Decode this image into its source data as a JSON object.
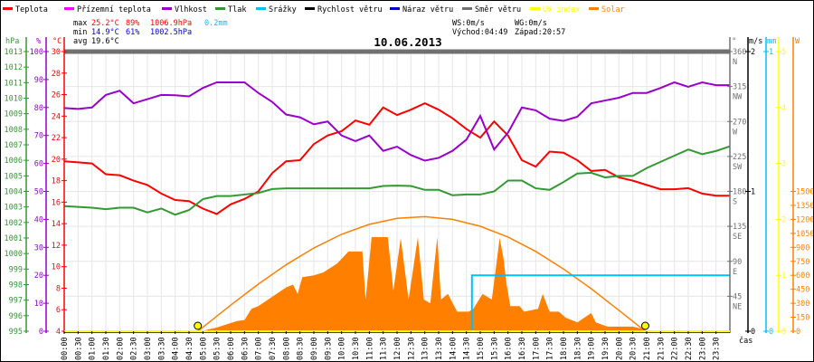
{
  "legend": [
    {
      "label": "Teplota",
      "color": "#ff0000"
    },
    {
      "label": "Přízemní teplota",
      "color": "#ff00ff"
    },
    {
      "label": "Vlhkost",
      "color": "#9900cc"
    },
    {
      "label": "Tlak",
      "color": "#339933"
    },
    {
      "label": "Srážky",
      "color": "#00bfff"
    },
    {
      "label": "Rychlost větru",
      "color": "#000000"
    },
    {
      "label": "Náraz větru",
      "color": "#0000cc"
    },
    {
      "label": "Směr větru",
      "color": "#707070"
    },
    {
      "label": "UV index",
      "color": "#ffff00"
    },
    {
      "label": "Solar",
      "color": "#ff8000"
    }
  ],
  "stats": {
    "max_label": "max",
    "min_label": "min",
    "avg_label": "avg",
    "max": {
      "temp": "25.2°C",
      "hum": "89%",
      "press": "1006.9hPa",
      "rain": "0.2mm"
    },
    "min": {
      "temp": "14.9°C",
      "hum": "61%",
      "press": "1002.5hPa"
    },
    "avg": {
      "temp": "19.6°C"
    },
    "ws": "WS:0m/s",
    "wg": "WG:0m/s",
    "sunrise": "Východ:04:49",
    "sunset": "Západ:20:57"
  },
  "colors": {
    "max": "#ff0000",
    "min": "#0000cc",
    "rain": "#00bfff",
    "grid": "#e6e6e6"
  },
  "chart_data": {
    "type": "line",
    "title": "10.06.2013",
    "xlabel": "čas",
    "x_ticks": [
      "00:00",
      "00:30",
      "01:00",
      "01:30",
      "02:00",
      "02:30",
      "03:00",
      "03:30",
      "04:00",
      "04:30",
      "05:00",
      "05:30",
      "06:00",
      "06:30",
      "07:00",
      "07:30",
      "08:00",
      "08:30",
      "09:00",
      "09:30",
      "10:00",
      "10:30",
      "11:00",
      "11:30",
      "12:00",
      "12:30",
      "13:00",
      "13:30",
      "14:00",
      "14:30",
      "15:00",
      "15:30",
      "16:00",
      "16:30",
      "17:00",
      "17:30",
      "18:00",
      "18:30",
      "19:00",
      "19:30",
      "20:00",
      "20:30",
      "21:00",
      "21:30",
      "22:00",
      "22:30",
      "23:00",
      "23:30"
    ],
    "grid": true,
    "axes": {
      "pressure": {
        "unit": "hPa",
        "range": [
          995,
          1013
        ],
        "ticks": [
          1013,
          1012,
          1011,
          1010,
          1009,
          1008,
          1007,
          1006,
          1005,
          1004,
          1003,
          1002,
          1001,
          1000,
          999,
          998,
          997,
          996,
          995
        ],
        "color": "#339933"
      },
      "humidity": {
        "unit": "%",
        "range": [
          0,
          100
        ],
        "ticks": [
          100,
          90,
          80,
          70,
          60,
          50,
          40,
          30,
          20,
          10,
          0
        ],
        "color": "#9900cc"
      },
      "temperature": {
        "unit": "°C",
        "range": [
          4,
          30
        ],
        "ticks": [
          30,
          28,
          26,
          24,
          22,
          20,
          18,
          16,
          14,
          12,
          10,
          8,
          6,
          4
        ],
        "color": "#ff0000"
      },
      "direction": {
        "unit": "°",
        "range": [
          0,
          360
        ],
        "ticks": [
          360,
          315,
          270,
          225,
          180,
          135,
          90,
          45
        ],
        "labels": [
          "N",
          "NW",
          "W",
          "SW",
          "S",
          "SE",
          "E",
          "NE"
        ],
        "color": "#707070"
      },
      "wind": {
        "unit": "m/s",
        "range": [
          0,
          2
        ],
        "ticks": [
          2,
          1,
          0
        ],
        "color": "#000000"
      },
      "rain": {
        "unit": "mm",
        "range": [
          0,
          1
        ],
        "ticks": [
          1,
          0
        ],
        "color": "#00bfff"
      },
      "uv": {
        "unit": "",
        "range": [
          0,
          5
        ],
        "ticks": [
          5,
          4,
          3,
          2,
          1,
          0
        ],
        "color": "#ffff00"
      },
      "solar": {
        "unit": "W",
        "range": [
          0,
          3000
        ],
        "ticks": [
          1500,
          1350,
          1200,
          1050,
          900,
          750,
          600,
          450,
          300,
          150,
          0
        ],
        "color": "#ff8000"
      }
    },
    "x": [
      "00:00",
      "00:30",
      "01:00",
      "01:30",
      "02:00",
      "02:30",
      "03:00",
      "03:30",
      "04:00",
      "04:30",
      "05:00",
      "05:30",
      "06:00",
      "06:30",
      "07:00",
      "07:30",
      "08:00",
      "08:30",
      "09:00",
      "09:30",
      "10:00",
      "10:30",
      "11:00",
      "11:30",
      "12:00",
      "12:30",
      "13:00",
      "13:30",
      "14:00",
      "14:30",
      "15:00",
      "15:30",
      "16:00",
      "16:30",
      "17:00",
      "17:30",
      "18:00",
      "18:30",
      "19:00",
      "19:30",
      "20:00",
      "20:30",
      "21:00",
      "21:30",
      "22:00",
      "22:30",
      "23:00",
      "23:30",
      "24:00"
    ],
    "series": [
      {
        "name": "Teplota",
        "axis": "temperature",
        "color": "#ff0000",
        "values": [
          19.8,
          19.7,
          19.6,
          18.6,
          18.5,
          18.0,
          17.6,
          16.8,
          16.2,
          16.1,
          15.4,
          14.9,
          15.8,
          16.3,
          17.0,
          18.7,
          19.8,
          19.9,
          21.4,
          22.2,
          22.6,
          23.6,
          23.2,
          24.8,
          24.1,
          24.6,
          25.2,
          24.6,
          23.8,
          22.8,
          22.0,
          23.5,
          22.2,
          19.9,
          19.3,
          20.7,
          20.6,
          19.9,
          18.9,
          19.0,
          18.3,
          18.0,
          17.6,
          17.2,
          17.2,
          17.3,
          16.8,
          16.6,
          16.6
        ]
      },
      {
        "name": "Vlhkost",
        "axis": "humidity",
        "color": "#9900cc",
        "values": [
          79.8,
          79.5,
          80,
          84.5,
          86,
          81.5,
          83,
          84.5,
          84.4,
          84,
          87,
          89,
          89,
          89,
          85.2,
          82,
          77.5,
          76.5,
          74,
          75,
          70,
          68,
          70,
          64.5,
          66,
          63,
          61,
          62,
          64.5,
          68.5,
          77,
          65,
          71,
          80,
          79,
          76,
          75.2,
          76.7,
          81.5,
          82.5,
          83.5,
          85.2,
          85.2,
          87,
          89,
          87.4,
          89,
          88,
          88
        ]
      },
      {
        "name": "Tlak",
        "axis": "pressure",
        "color": "#339933",
        "values": [
          1003.05,
          1003.0,
          1002.95,
          1002.86,
          1002.95,
          1002.95,
          1002.65,
          1002.9,
          1002.5,
          1002.8,
          1003.5,
          1003.7,
          1003.7,
          1003.8,
          1003.9,
          1004.15,
          1004.2,
          1004.2,
          1004.2,
          1004.2,
          1004.2,
          1004.2,
          1004.2,
          1004.35,
          1004.37,
          1004.35,
          1004.1,
          1004.1,
          1003.75,
          1003.8,
          1003.8,
          1004.0,
          1004.7,
          1004.7,
          1004.2,
          1004.1,
          1004.6,
          1005.15,
          1005.2,
          1004.9,
          1005.0,
          1005.0,
          1005.5,
          1005.9,
          1006.3,
          1006.7,
          1006.4,
          1006.6,
          1006.9
        ]
      },
      {
        "name": "Směr větru",
        "axis": "direction",
        "color": "#707070",
        "values": [
          360,
          360,
          360,
          360,
          360,
          360,
          360,
          360,
          360,
          360,
          360,
          360,
          360,
          360,
          360,
          360,
          360,
          360,
          360,
          360,
          360,
          360,
          360,
          360,
          360,
          360,
          360,
          360,
          360,
          360,
          360,
          360,
          360,
          360,
          360,
          360,
          360,
          360,
          360,
          360,
          360,
          360,
          360,
          360,
          360,
          360,
          360,
          360,
          360
        ]
      },
      {
        "name": "UV index",
        "axis": "uv",
        "color": "#ffff00",
        "values": [
          0,
          0,
          0,
          0,
          0,
          0,
          0,
          0,
          0,
          0,
          0,
          0,
          0,
          0,
          0,
          0,
          0,
          0,
          0,
          0,
          0,
          0,
          0,
          0,
          0,
          0,
          0,
          0,
          0,
          0,
          0,
          0,
          0,
          0,
          0,
          0,
          0,
          0,
          0,
          0,
          0,
          0,
          0,
          0,
          0,
          0,
          0,
          0,
          0
        ]
      }
    ],
    "rain": {
      "name": "Srážky",
      "points": [
        [
          "00:00",
          0
        ],
        [
          "14:42",
          0
        ],
        [
          "14:42",
          0.2
        ],
        [
          "24:00",
          0.2
        ]
      ]
    },
    "solar": {
      "name": "Solar",
      "points": [
        [
          "04:50",
          0
        ],
        [
          "05:00",
          5
        ],
        [
          "05:30",
          40
        ],
        [
          "05:55",
          80
        ],
        [
          "06:15",
          110
        ],
        [
          "06:30",
          120
        ],
        [
          "06:45",
          240
        ],
        [
          "07:00",
          270
        ],
        [
          "07:30",
          370
        ],
        [
          "08:00",
          470
        ],
        [
          "08:15",
          500
        ],
        [
          "08:25",
          400
        ],
        [
          "08:35",
          580
        ],
        [
          "09:00",
          600
        ],
        [
          "09:20",
          630
        ],
        [
          "09:50",
          725
        ],
        [
          "10:15",
          855
        ],
        [
          "10:45",
          855
        ],
        [
          "10:52",
          340
        ],
        [
          "11:05",
          1010
        ],
        [
          "11:40",
          1010
        ],
        [
          "11:52",
          435
        ],
        [
          "12:08",
          1000
        ],
        [
          "12:25",
          340
        ],
        [
          "12:45",
          1010
        ],
        [
          "12:58",
          340
        ],
        [
          "13:12",
          300
        ],
        [
          "13:27",
          1010
        ],
        [
          "13:35",
          340
        ],
        [
          "13:50",
          400
        ],
        [
          "14:10",
          210
        ],
        [
          "14:35",
          210
        ],
        [
          "14:45",
          240
        ],
        [
          "15:05",
          400
        ],
        [
          "15:25",
          340
        ],
        [
          "15:30",
          530
        ],
        [
          "15:42",
          1000
        ],
        [
          "15:50",
          790
        ],
        [
          "15:57",
          500
        ],
        [
          "16:05",
          270
        ],
        [
          "16:25",
          270
        ],
        [
          "16:35",
          210
        ],
        [
          "17:05",
          240
        ],
        [
          "17:15",
          400
        ],
        [
          "17:30",
          210
        ],
        [
          "17:50",
          210
        ],
        [
          "18:05",
          145
        ],
        [
          "18:30",
          95
        ],
        [
          "19:00",
          195
        ],
        [
          "19:10",
          95
        ],
        [
          "19:35",
          50
        ],
        [
          "20:30",
          50
        ],
        [
          "20:55",
          20
        ],
        [
          "21:00",
          0
        ]
      ]
    },
    "solar_theoretical": {
      "points": [
        [
          "04:49",
          0
        ],
        [
          "05:00",
          43
        ],
        [
          "06:00",
          280
        ],
        [
          "07:00",
          506
        ],
        [
          "08:00",
          713
        ],
        [
          "09:00",
          893
        ],
        [
          "10:00",
          1040
        ],
        [
          "11:00",
          1147
        ],
        [
          "12:00",
          1211
        ],
        [
          "13:00",
          1229
        ],
        [
          "14:00",
          1200
        ],
        [
          "15:00",
          1126
        ],
        [
          "16:00",
          1010
        ],
        [
          "17:00",
          856
        ],
        [
          "18:00",
          668
        ],
        [
          "19:00",
          456
        ],
        [
          "20:00",
          224
        ],
        [
          "20:57",
          0
        ]
      ]
    },
    "sun_markers": [
      "04:49",
      "20:57"
    ]
  }
}
